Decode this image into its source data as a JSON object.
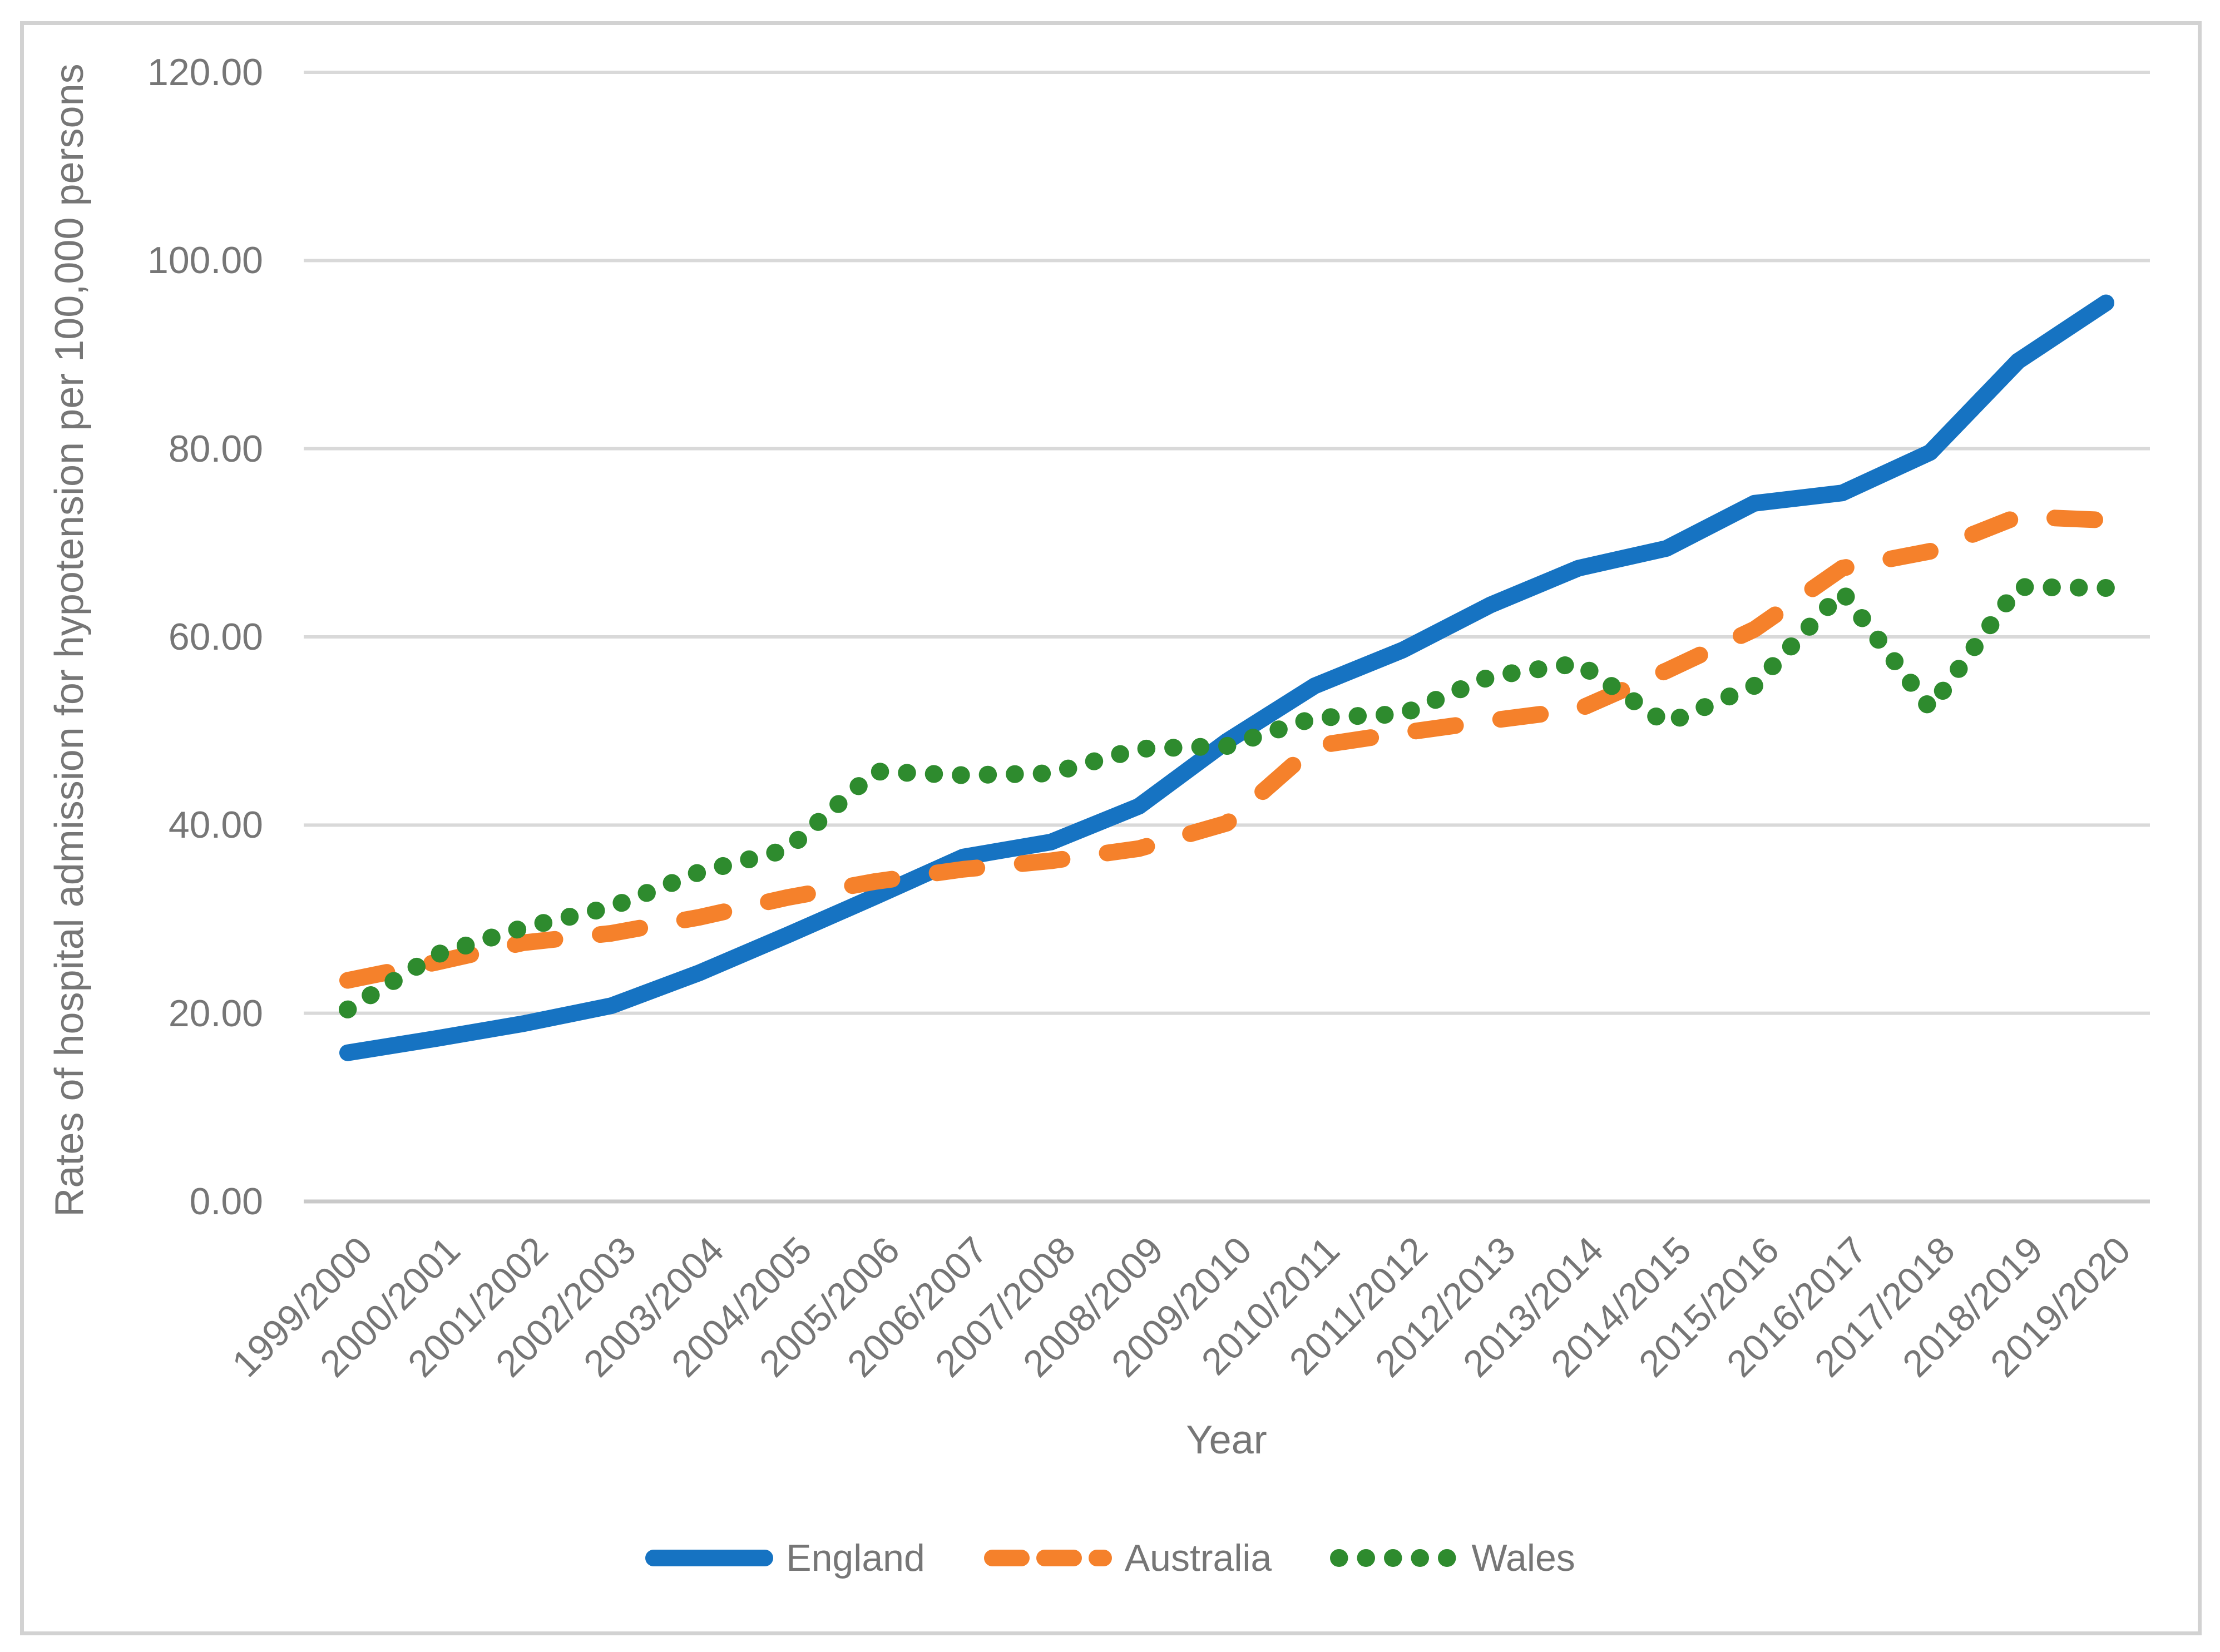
{
  "chart_data": {
    "type": "line",
    "title": "",
    "xlabel": "Year",
    "ylabel": "Rates of hospital admission for hypotension per 100,000 persons",
    "ylim": [
      0,
      120
    ],
    "ytick_step": 20,
    "grid": true,
    "legend_position": "bottom",
    "y_tick_labels": [
      "0.00",
      "20.00",
      "40.00",
      "60.00",
      "80.00",
      "100.00",
      "120.00"
    ],
    "categories": [
      "1999/2000",
      "2000/2001",
      "2001/2002",
      "2002/2003",
      "2003/2004",
      "2004/2005",
      "2005/2006",
      "2006/2007",
      "2007/2008",
      "2008/2009",
      "2009/2010",
      "2010/2011",
      "2011/2012",
      "2012/2013",
      "2013/2014",
      "2014/2015",
      "2015/2016",
      "2016/2017",
      "2017/2018",
      "2018/2019",
      "2019/2020"
    ],
    "series": [
      {
        "name": "England",
        "color": "#1673C2",
        "style": "solid",
        "values": [
          15.8,
          17.3,
          18.9,
          20.8,
          24.3,
          28.3,
          32.4,
          36.6,
          38.2,
          42.0,
          48.9,
          54.8,
          58.6,
          63.4,
          67.3,
          69.4,
          74.2,
          75.3,
          79.6,
          89.3,
          95.5
        ]
      },
      {
        "name": "Australia",
        "color": "#F5812B",
        "style": "dashed",
        "values": [
          23.5,
          25.4,
          27.5,
          28.5,
          30.2,
          32.3,
          34.0,
          35.3,
          36.2,
          37.5,
          40.2,
          48.4,
          49.8,
          51.1,
          52.3,
          56.4,
          60.8,
          67.3,
          69.1,
          72.8,
          72.4
        ]
      },
      {
        "name": "Wales",
        "color": "#2E8B2E",
        "style": "dotted",
        "values": [
          20.4,
          26.2,
          29.1,
          31.3,
          35.0,
          37.4,
          45.7,
          45.3,
          45.5,
          48.1,
          48.4,
          51.4,
          51.8,
          55.8,
          57.2,
          50.8,
          54.8,
          64.8,
          52.4,
          65.3,
          65.2
        ]
      }
    ],
    "colors": {
      "gridline": "#D9D9D9",
      "axis_line": "#C9C9C9",
      "text": "#767676",
      "frame": "#D2D2D2"
    }
  }
}
